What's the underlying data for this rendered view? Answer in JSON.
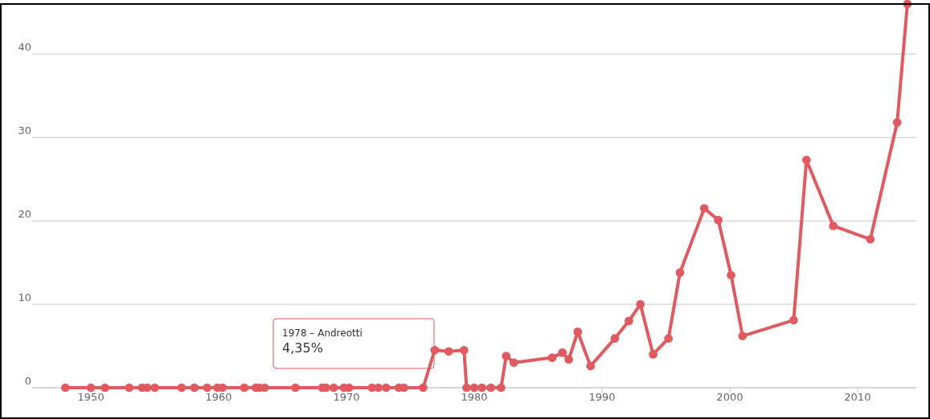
{
  "chart_data": {
    "type": "line",
    "marker": "circle",
    "grid": "y",
    "xlim": [
      1945.4,
      2014.6
    ],
    "xticks": [
      1950,
      1960,
      1970,
      1980,
      1990,
      2000,
      2010
    ],
    "ylim": [
      0,
      46
    ],
    "yticks": [
      0,
      10,
      20,
      30,
      40
    ],
    "annotations": [
      "1978 – Andreotti\n4,35%"
    ],
    "series": [
      {
        "color": "#e05a5f",
        "x": [
          1948.0,
          1950.0,
          1951.1,
          1953.0,
          1954.0,
          1954.4,
          1955.0,
          1957.1,
          1958.1,
          1959.1,
          1959.9,
          1960.3,
          1962.0,
          1962.9,
          1963.2,
          1963.6,
          1966.0,
          1968.1,
          1968.4,
          1969.0,
          1969.8,
          1970.2,
          1972.0,
          1972.5,
          1973.1,
          1974.1,
          1974.5,
          1976.0,
          1976.9,
          1978.0,
          1979.2,
          1979.4,
          1980.0,
          1980.6,
          1981.3,
          1982.1,
          1982.5,
          1983.1,
          1986.1,
          1986.9,
          1987.4,
          1988.1,
          1989.1,
          1991.0,
          1992.1,
          1993.0,
          1994.0,
          1995.2,
          1996.1,
          1998.0,
          1999.1,
          2000.1,
          2001.0,
          2005.0,
          2006.0,
          2008.1,
          2011.0,
          2013.1,
          2013.9
        ],
        "values": [
          0,
          0,
          0,
          0,
          0,
          0,
          0,
          0,
          0,
          0,
          0,
          0,
          0,
          0,
          0,
          0,
          0,
          0,
          0,
          0,
          0,
          0,
          0,
          0,
          0,
          0,
          0,
          0,
          4.5,
          4.35,
          4.5,
          0,
          0,
          0,
          0,
          0,
          3.8,
          3.0,
          3.6,
          4.2,
          3.4,
          6.7,
          2.6,
          5.9,
          8.0,
          10.0,
          4.0,
          5.9,
          13.8,
          21.5,
          20.1,
          13.5,
          6.2,
          8.1,
          27.3,
          19.4,
          17.8,
          31.8,
          46
        ]
      }
    ]
  }
}
